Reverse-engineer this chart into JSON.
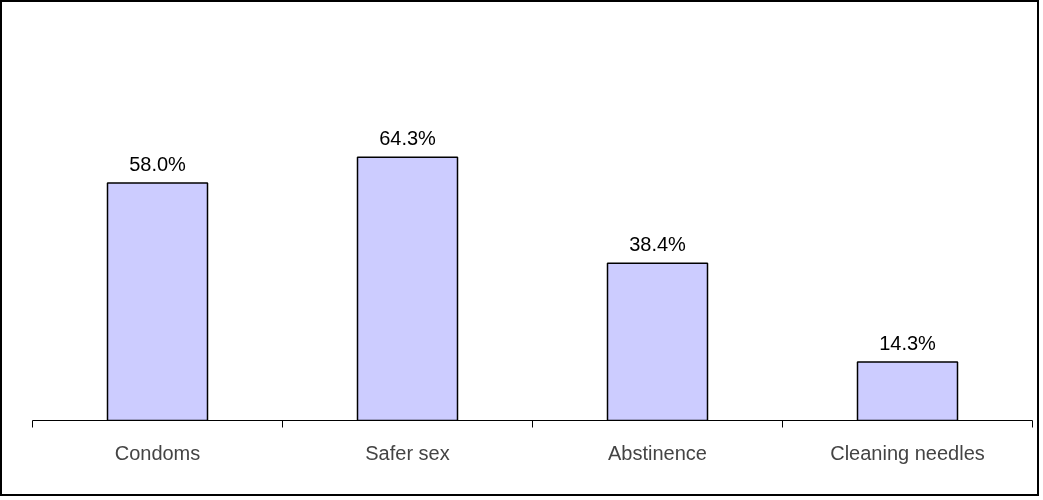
{
  "chart_data": {
    "type": "bar",
    "categories": [
      "Condoms",
      "Safer sex",
      "Abstinence",
      "Cleaning needles"
    ],
    "values": [
      58.0,
      64.3,
      38.4,
      14.3
    ],
    "value_labels": [
      "58.0%",
      "64.3%",
      "38.4%",
      "14.3%"
    ],
    "color": "#ccccff"
  }
}
